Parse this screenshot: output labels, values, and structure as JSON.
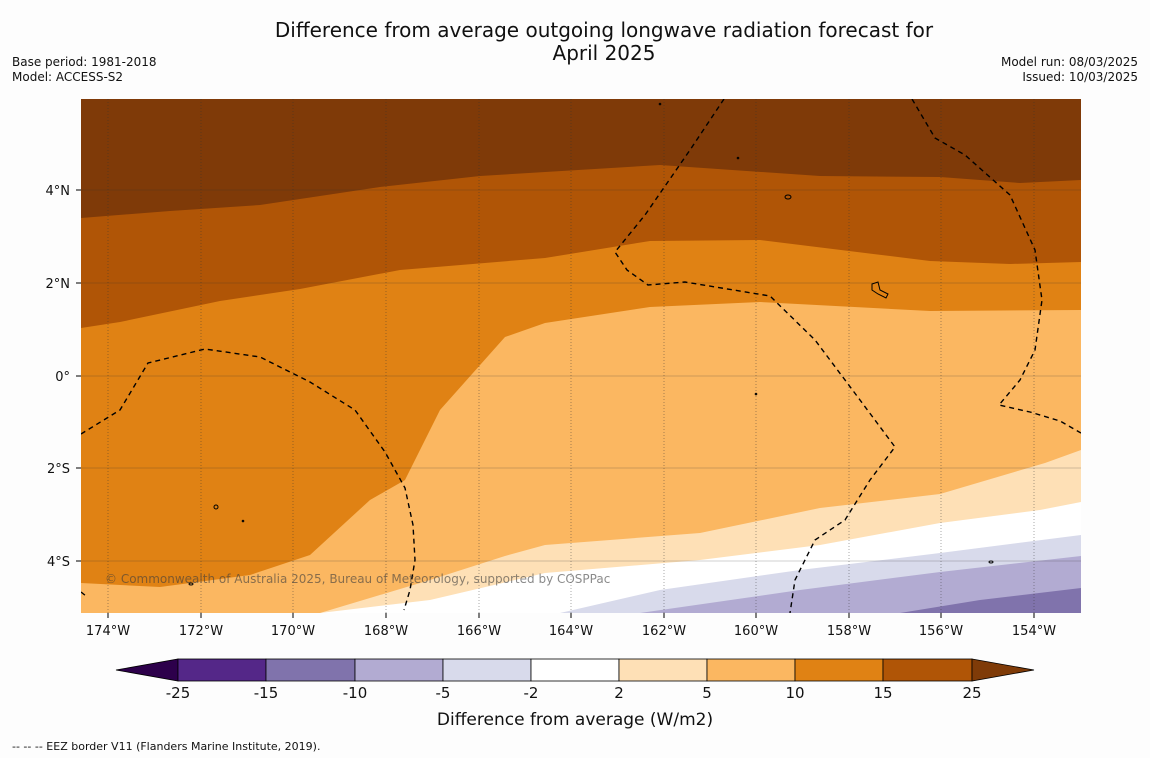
{
  "header": {
    "title_line1": "Difference from average outgoing longwave radiation forecast for",
    "title_line2": "April 2025",
    "base_period": "Base period: 1981-2018",
    "model": "Model: ACCESS-S2",
    "model_run": "Model run: 08/03/2025",
    "issued": "Issued: 10/03/2025"
  },
  "map": {
    "lon_range": [
      -175,
      -153
    ],
    "lat_range": [
      -5,
      6
    ],
    "x_ticks": [
      "174°W",
      "172°W",
      "170°W",
      "168°W",
      "166°W",
      "164°W",
      "162°W",
      "160°W",
      "158°W",
      "156°W",
      "154°W"
    ],
    "y_ticks": [
      "4°N",
      "2°N",
      "0°",
      "2°S",
      "4°S"
    ],
    "credit": "© Commonwealth of Australia 2025, Bureau of Meteorology, supported by COSPPac",
    "dominant_anomaly_colors": {
      "15 to 25": "#b05506",
      "above 25": "#7f3a08",
      "10 to 15": "#e08214",
      "5 to 10": "#fbb761",
      "2 to 5": "#fee0b6",
      "-2 to 2": "#ffffff",
      "-5 to -2": "#d8daeb",
      "-10 to -5": "#b2abd2",
      "-15 to -10": "#8073ac"
    }
  },
  "colorbar": {
    "title": "Difference from average (W/m2)",
    "tick_labels": [
      "-25",
      "-15",
      "-10",
      "-5",
      "-2",
      "2",
      "5",
      "10",
      "15",
      "25"
    ],
    "colors": [
      "#542788",
      "#8073ac",
      "#b2abd2",
      "#d8daeb",
      "#ffffff",
      "#fee0b6",
      "#fbb761",
      "#e08214",
      "#b05506"
    ],
    "under_color": "#2d004b",
    "over_color": "#7f3b08"
  },
  "footnote": "--  --  -- EEZ border V11 (Flanders Marine Institute, 2019)."
}
